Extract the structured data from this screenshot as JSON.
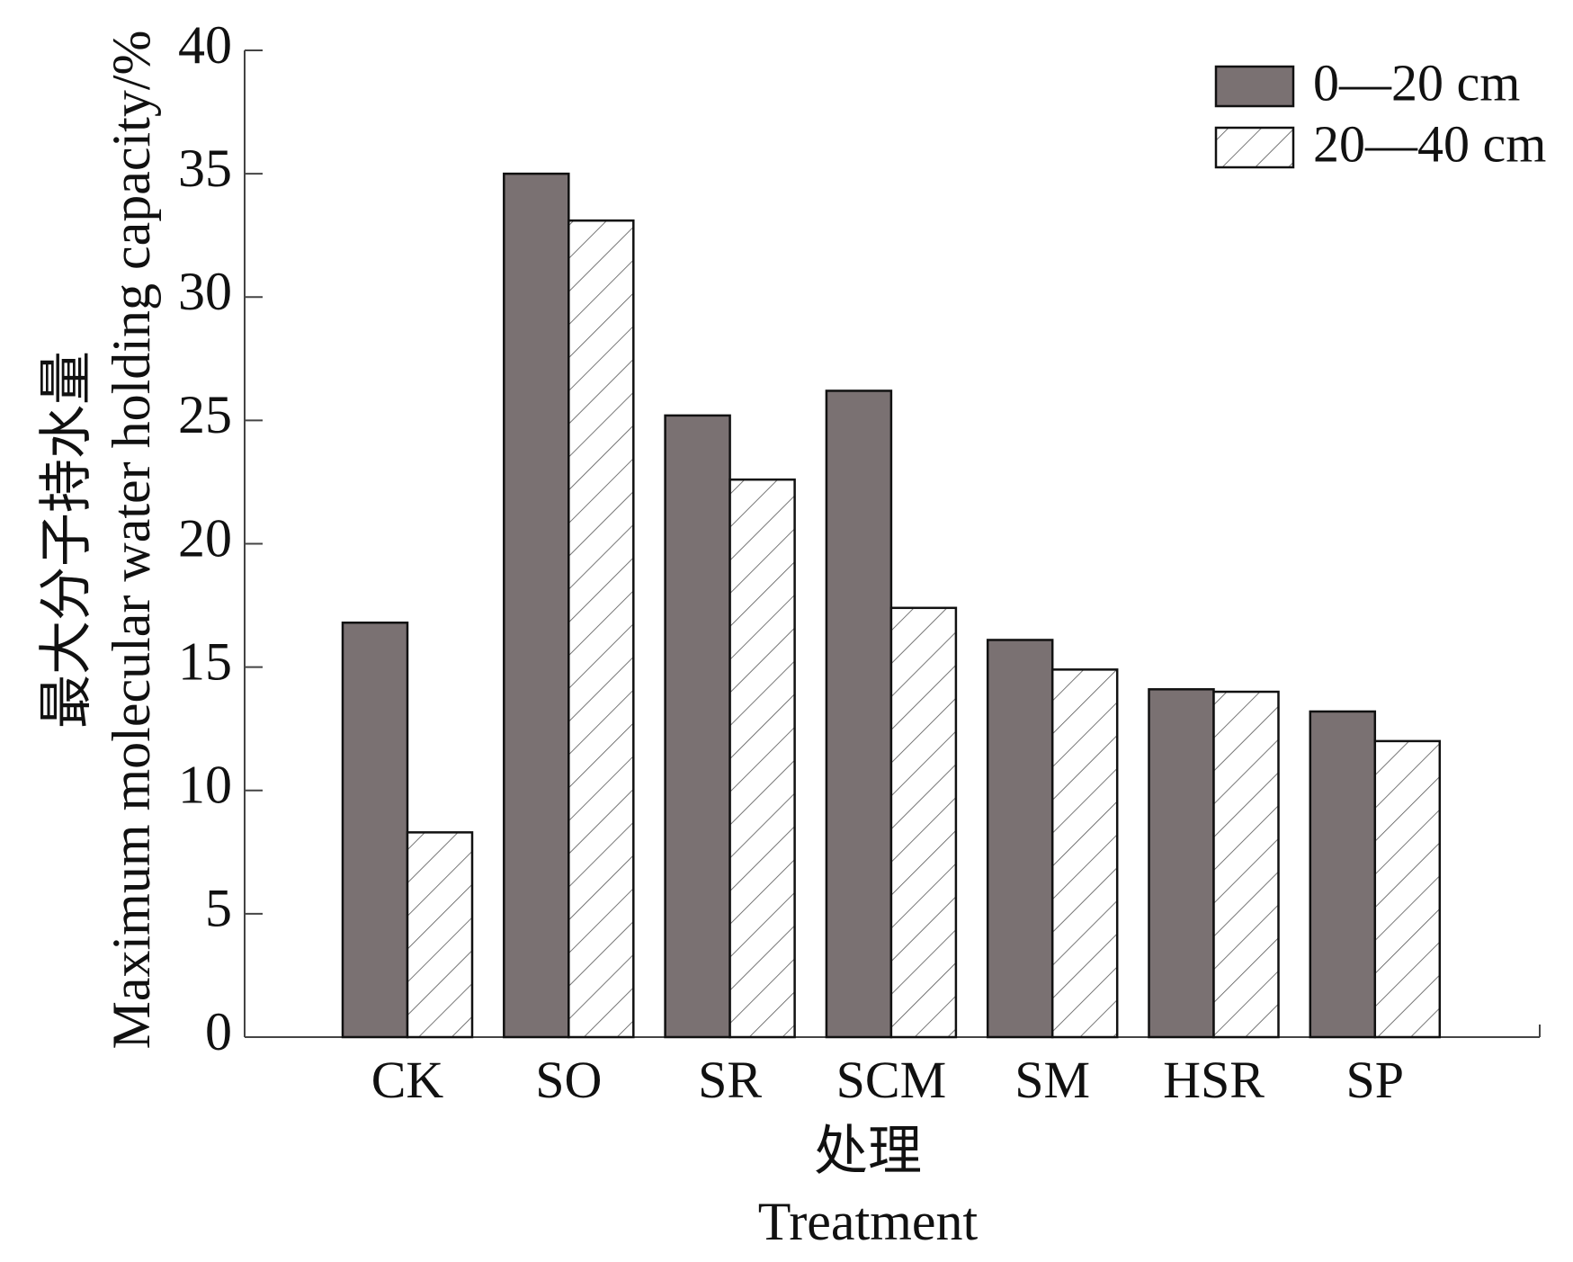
{
  "chart_data": {
    "type": "bar",
    "categories": [
      "CK",
      "SO",
      "SR",
      "SCM",
      "SM",
      "HSR",
      "SP"
    ],
    "series": [
      {
        "name": "0—20 cm",
        "values": [
          16.8,
          35.0,
          25.2,
          26.2,
          16.1,
          14.1,
          13.2
        ],
        "color": "#7a7172",
        "pattern": "solid"
      },
      {
        "name": "20—40 cm",
        "values": [
          8.3,
          33.1,
          22.6,
          17.4,
          14.9,
          14.0,
          12.0
        ],
        "color": "#ffffff",
        "pattern": "hatch"
      }
    ],
    "xlabel_cn": "处理",
    "xlabel_en": "Treatment",
    "ylabel_cn": "最大分子持水量",
    "ylabel_en": "Maximum molecular water holding capacity/%",
    "ylim": [
      0,
      40
    ],
    "yticks": [
      0,
      5,
      10,
      15,
      20,
      25,
      30,
      35,
      40
    ],
    "grid": false,
    "legend_position": "top-right"
  }
}
